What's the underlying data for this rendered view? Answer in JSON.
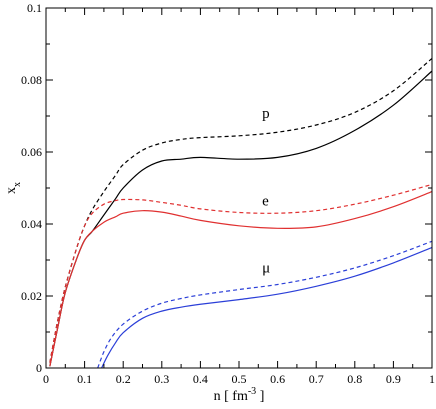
{
  "chart_data": {
    "type": "line",
    "title": "",
    "xlabel": "n [ fm",
    "xlabel_sup": "-3",
    "xlabel_close": " ]",
    "ylabel": "x",
    "ylabel_sub": "x",
    "xlim": [
      0,
      1
    ],
    "ylim": [
      0,
      0.1
    ],
    "grid": false,
    "x_ticks": [
      0,
      0.1,
      0.2,
      0.3,
      0.4,
      0.5,
      0.6,
      0.7,
      0.8,
      0.9,
      1
    ],
    "x_tick_labels": [
      "0",
      "0.1",
      "0.2",
      "0.3",
      "0.4",
      "0.5",
      "0.6",
      "0.7",
      "0.8",
      "0.9",
      "1"
    ],
    "y_ticks": [
      0,
      0.02,
      0.04,
      0.06,
      0.08,
      0.1
    ],
    "y_tick_labels": [
      "0",
      "0.02",
      "0.04",
      "0.06",
      "0.08",
      "0.1"
    ],
    "annotations": [
      {
        "text": "p",
        "x": 0.56,
        "y": 0.0695
      },
      {
        "text": "e",
        "x": 0.56,
        "y": 0.0452
      },
      {
        "text": "μ",
        "x": 0.56,
        "y": 0.0265
      }
    ],
    "series": [
      {
        "color": "#000000",
        "dash": true,
        "x": [
          0.01,
          0.03,
          0.05,
          0.08,
          0.1,
          0.12,
          0.15,
          0.18,
          0.2,
          0.25,
          0.3,
          0.35,
          0.4,
          0.5,
          0.6,
          0.7,
          0.8,
          0.9,
          1.0
        ],
        "y": [
          0.0015,
          0.013,
          0.0225,
          0.0335,
          0.0395,
          0.044,
          0.049,
          0.0535,
          0.0565,
          0.0605,
          0.0625,
          0.0635,
          0.064,
          0.0645,
          0.0655,
          0.0675,
          0.071,
          0.077,
          0.086
        ]
      },
      {
        "color": "#000000",
        "dash": false,
        "x": [
          0.01,
          0.03,
          0.05,
          0.08,
          0.1,
          0.12,
          0.15,
          0.18,
          0.2,
          0.25,
          0.3,
          0.35,
          0.4,
          0.5,
          0.6,
          0.7,
          0.8,
          0.9,
          1.0
        ],
        "y": [
          0.0005,
          0.011,
          0.021,
          0.0305,
          0.0355,
          0.038,
          0.0425,
          0.047,
          0.05,
          0.055,
          0.0575,
          0.058,
          0.0585,
          0.058,
          0.0585,
          0.061,
          0.066,
          0.073,
          0.0825
        ]
      },
      {
        "color": "#e03030",
        "dash": true,
        "x": [
          0.01,
          0.03,
          0.05,
          0.08,
          0.1,
          0.12,
          0.15,
          0.18,
          0.2,
          0.25,
          0.3,
          0.35,
          0.4,
          0.5,
          0.6,
          0.7,
          0.8,
          0.9,
          1.0
        ],
        "y": [
          0.0015,
          0.013,
          0.0225,
          0.0335,
          0.0395,
          0.043,
          0.0455,
          0.0465,
          0.0468,
          0.0467,
          0.046,
          0.0452,
          0.0442,
          0.0432,
          0.043,
          0.0437,
          0.0455,
          0.048,
          0.051
        ]
      },
      {
        "color": "#e03030",
        "dash": false,
        "x": [
          0.01,
          0.03,
          0.05,
          0.08,
          0.1,
          0.12,
          0.15,
          0.18,
          0.2,
          0.25,
          0.3,
          0.35,
          0.4,
          0.5,
          0.6,
          0.7,
          0.8,
          0.9,
          1.0
        ],
        "y": [
          0.0005,
          0.011,
          0.021,
          0.0305,
          0.0355,
          0.038,
          0.0405,
          0.042,
          0.043,
          0.0437,
          0.0433,
          0.0422,
          0.041,
          0.0395,
          0.0388,
          0.0392,
          0.0415,
          0.0448,
          0.049
        ]
      },
      {
        "color": "#2b3fd8",
        "dash": true,
        "x": [
          0.134,
          0.15,
          0.17,
          0.2,
          0.25,
          0.3,
          0.35,
          0.4,
          0.5,
          0.6,
          0.7,
          0.8,
          0.9,
          1.0
        ],
        "y": [
          0.0,
          0.0045,
          0.0085,
          0.0122,
          0.0158,
          0.018,
          0.0193,
          0.0203,
          0.0218,
          0.0232,
          0.0252,
          0.0278,
          0.0312,
          0.0352
        ]
      },
      {
        "color": "#2b3fd8",
        "dash": false,
        "x": [
          0.144,
          0.16,
          0.18,
          0.2,
          0.25,
          0.3,
          0.35,
          0.4,
          0.5,
          0.6,
          0.7,
          0.8,
          0.9,
          1.0
        ],
        "y": [
          0.0,
          0.0035,
          0.007,
          0.0098,
          0.0138,
          0.0158,
          0.0169,
          0.0177,
          0.019,
          0.0205,
          0.0227,
          0.0255,
          0.0292,
          0.0335
        ]
      }
    ]
  }
}
